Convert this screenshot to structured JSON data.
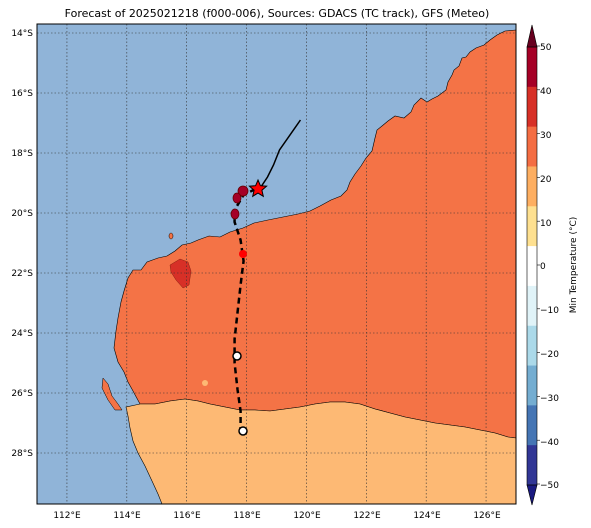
{
  "title": "Forecast of 2025021218 (f000-006), Sources: GDACS (TC track), GFS (Meteo)",
  "map": {
    "lon_range": [
      111,
      127
    ],
    "lat_range": [
      -29.7,
      -13.7
    ],
    "lon_ticks": [
      "112°E",
      "114°E",
      "116°E",
      "118°E",
      "120°E",
      "122°E",
      "124°E",
      "126°E"
    ],
    "lat_ticks": [
      "14°S",
      "16°S",
      "18°S",
      "20°S",
      "22°S",
      "24°S",
      "26°S",
      "28°S"
    ],
    "grid": true,
    "colors": {
      "ocean": "#90b4d8",
      "land_20_30": "#f47346",
      "land_10_20": "#fdb974",
      "hot_spot": "#d73027",
      "track": "#000000",
      "marker_red": "#ff0000",
      "marker_dark": "#a50026"
    }
  },
  "track": {
    "observed": [
      [
        119.8,
        -16.9
      ],
      [
        119.1,
        -17.9
      ],
      [
        118.9,
        -18.4
      ],
      [
        118.7,
        -18.8
      ],
      [
        118.5,
        -19.1
      ],
      [
        118.3,
        -19.2
      ]
    ],
    "forecast": [
      [
        118.3,
        -19.2
      ],
      [
        117.9,
        -19.4
      ],
      [
        117.6,
        -19.9
      ],
      [
        117.6,
        -20.3
      ],
      [
        117.8,
        -20.9
      ],
      [
        117.9,
        -21.6
      ],
      [
        117.8,
        -22.4
      ],
      [
        117.7,
        -23.3
      ],
      [
        117.6,
        -24.2
      ],
      [
        117.6,
        -25.0
      ],
      [
        117.7,
        -25.9
      ],
      [
        117.8,
        -26.6
      ],
      [
        117.8,
        -27.3
      ]
    ],
    "current_position": [
      118.3,
      -19.2
    ],
    "forecast_points": [
      [
        117.6,
        -24.8
      ],
      [
        117.8,
        -27.3
      ]
    ]
  },
  "colorbar": {
    "label": "Min Temperature (°C)",
    "ticks": [
      "50",
      "40",
      "30",
      "20",
      "10",
      "0",
      "−10",
      "−20",
      "−30",
      "−40",
      "−50"
    ],
    "bands": [
      "#67001f",
      "#a50026",
      "#d73027",
      "#f46d43",
      "#fdae61",
      "#fee090",
      "#ffffff",
      "#e0f3f8",
      "#abd9e9",
      "#74add1",
      "#4575b4",
      "#313695",
      "#1a1a80"
    ]
  }
}
